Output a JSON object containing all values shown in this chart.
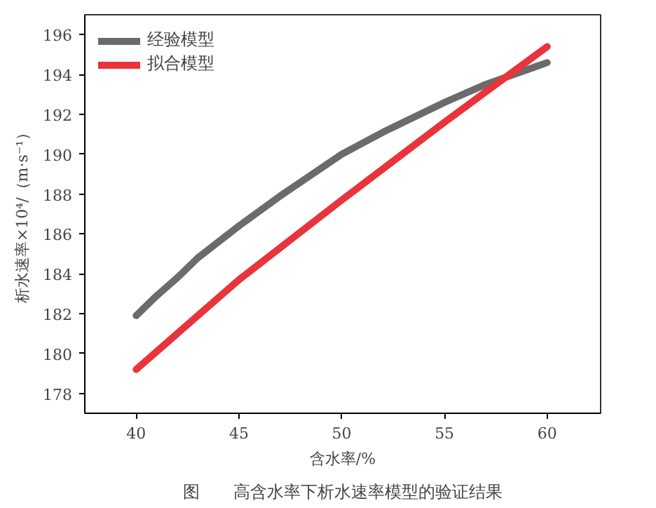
{
  "chart_data": {
    "type": "line",
    "xlabel": "含水率/%",
    "ylabel": "析水速率×10⁴/（m·s⁻¹）",
    "annotations": [
      "图　　高含水率下析水速率模型的验证结果"
    ],
    "xlim": [
      37.5,
      62.6
    ],
    "xticks": [
      40,
      45,
      50,
      55,
      60
    ],
    "ylim": [
      177,
      197
    ],
    "yticks": [
      178,
      180,
      182,
      184,
      186,
      188,
      190,
      192,
      194,
      196
    ],
    "grid": false,
    "legend": "top left",
    "series": [
      {
        "name": "经验模型",
        "color": "#6b6b6b",
        "x": [
          40,
          41,
          42,
          43,
          44,
          45,
          47,
          50,
          52,
          55,
          57,
          60
        ],
        "values": [
          181.9,
          182.9,
          183.8,
          184.8,
          185.6,
          186.4,
          187.9,
          190.0,
          191.1,
          192.6,
          193.5,
          194.6
        ]
      },
      {
        "name": "拟合模型",
        "color": "#e8343a",
        "x": [
          40,
          45,
          50,
          55,
          60
        ],
        "values": [
          179.2,
          183.7,
          187.7,
          191.6,
          195.4
        ]
      }
    ]
  }
}
